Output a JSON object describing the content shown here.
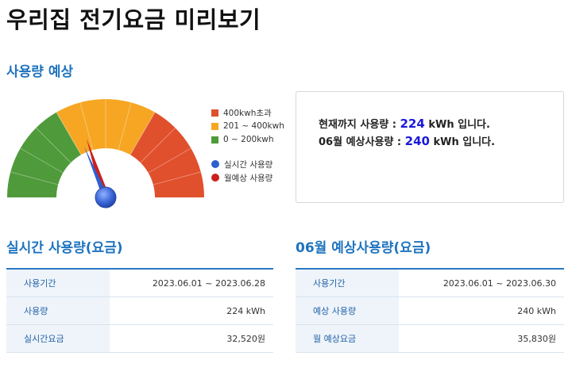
{
  "page": {
    "title": "우리집 전기요금 미리보기"
  },
  "forecast": {
    "section_title": "사용량 예상",
    "legend": [
      {
        "label": "400kwh초과",
        "color": "#e0502c"
      },
      {
        "label": "201 ~ 400kwh",
        "color": "#f6a623"
      },
      {
        "label": "0 ~ 200kwh",
        "color": "#4f9a3a"
      }
    ],
    "needles": [
      {
        "label": "실시간 사용량",
        "color": "#2e5fd0"
      },
      {
        "label": "월예상 사용량",
        "color": "#cc1f1f"
      }
    ],
    "gauge": {
      "min": 0,
      "max": 600,
      "realtime": 224,
      "monthly": 240
    }
  },
  "summary": {
    "line1_prefix": "현재까지 사용량 : ",
    "line1_value": "224",
    "line1_suffix": " kWh 입니다.",
    "line2_prefix": "06월 예상사용량 : ",
    "line2_value": "240",
    "line2_suffix": " kWh 입니다."
  },
  "realtime": {
    "section_title": "실시간 사용량(요금)",
    "rows": [
      {
        "label": "사용기간",
        "value": "2023.06.01 ~ 2023.06.28"
      },
      {
        "label": "사용량",
        "value": "224 kWh"
      },
      {
        "label": "실시간요금",
        "value": "32,520원"
      }
    ]
  },
  "monthly": {
    "section_title": "06월 예상사용량(요금)",
    "rows": [
      {
        "label": "사용기간",
        "value": "2023.06.01 ~ 2023.06.30"
      },
      {
        "label": "예상 사용량",
        "value": "240 kWh"
      },
      {
        "label": "월 예상요금",
        "value": "35,830원"
      }
    ]
  }
}
